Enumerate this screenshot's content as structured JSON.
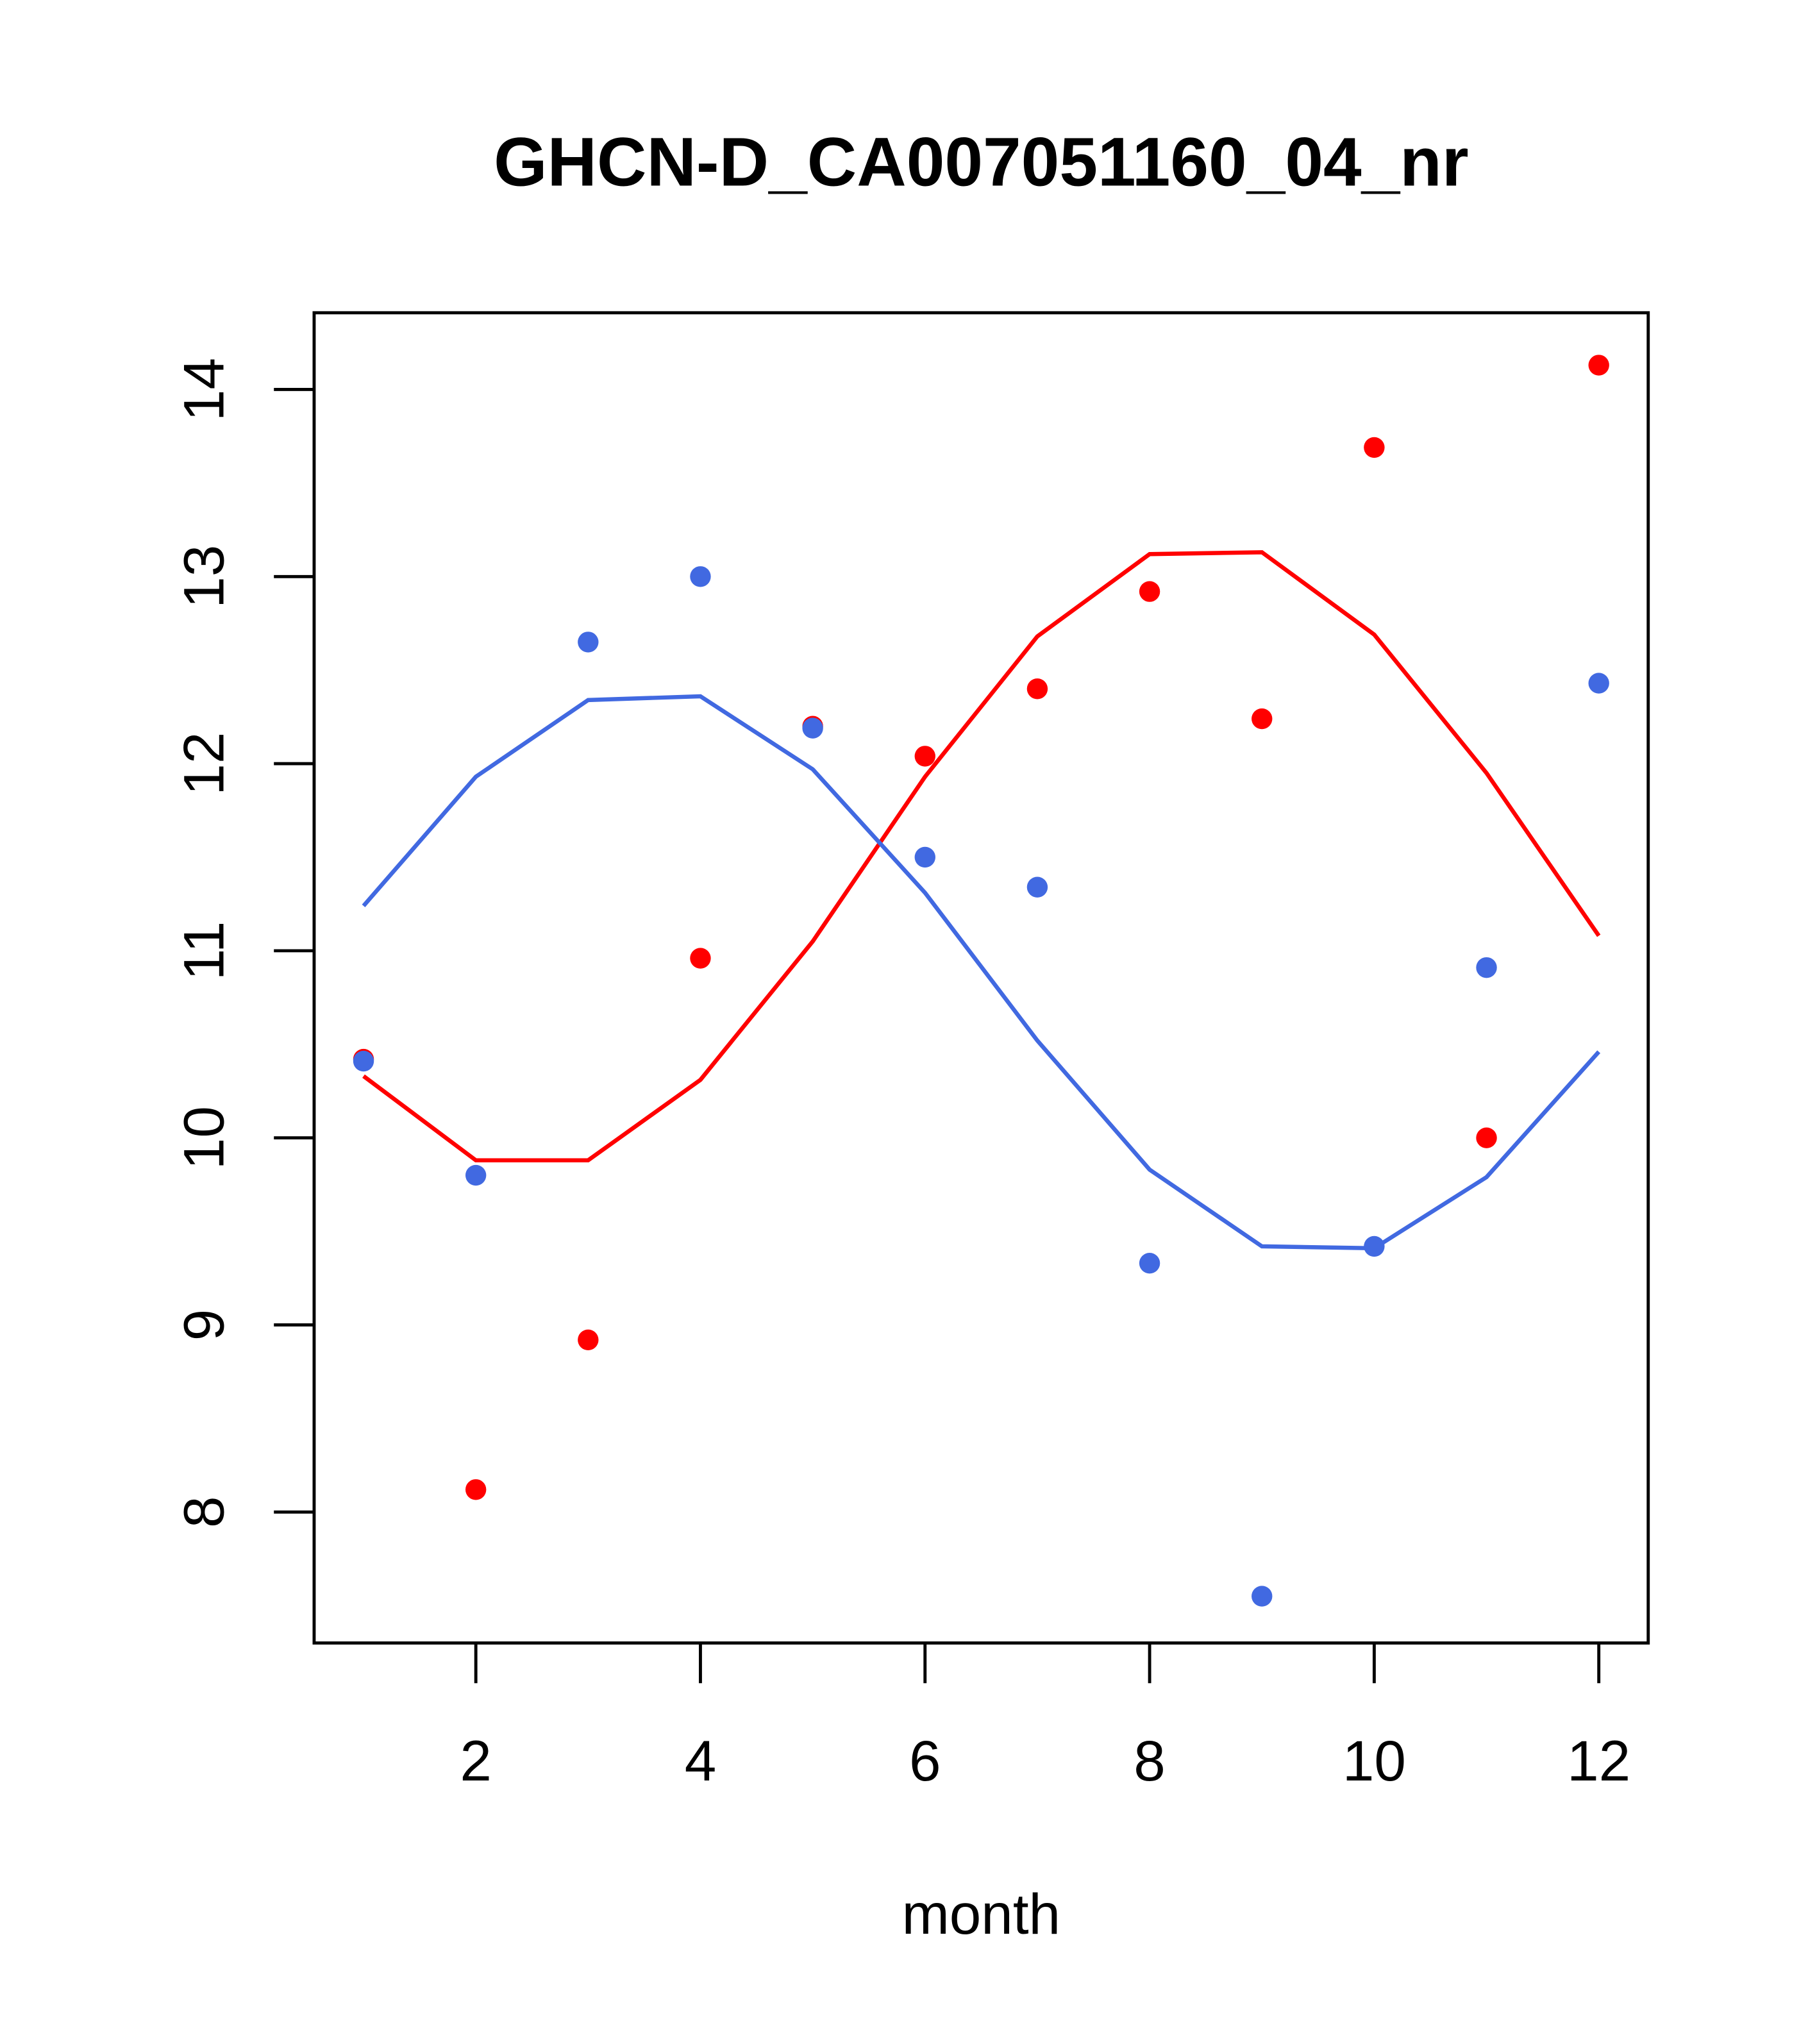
{
  "chart_data": {
    "type": "scatter",
    "title": "GHCN-D_CA007051160_04_nr",
    "xlabel": "month",
    "ylabel": "",
    "xlim": [
      0.56,
      12.44
    ],
    "ylim": [
      7.3,
      14.41
    ],
    "xticks": [
      2,
      4,
      6,
      8,
      10,
      12
    ],
    "xtick_labels": [
      "2",
      "4",
      "6",
      "8",
      "10",
      "12"
    ],
    "yticks": [
      8,
      9,
      10,
      11,
      12,
      13,
      14
    ],
    "ytick_labels": [
      "8",
      "9",
      "10",
      "11",
      "12",
      "13",
      "14"
    ],
    "grid": false,
    "x": [
      1,
      2,
      3,
      4,
      5,
      6,
      7,
      8,
      9,
      10,
      11,
      12
    ],
    "series": [
      {
        "name": "red points",
        "kind": "points",
        "color": "#ff0000",
        "values": [
          10.42,
          8.12,
          8.92,
          10.96,
          12.2,
          12.04,
          12.4,
          12.92,
          12.24,
          13.69,
          10.0,
          14.13
        ]
      },
      {
        "name": "blue points",
        "kind": "points",
        "color": "#4169e1",
        "values": [
          10.41,
          9.8,
          12.65,
          13.0,
          12.19,
          11.5,
          11.34,
          9.33,
          7.55,
          9.42,
          10.91,
          12.43
        ]
      },
      {
        "name": "red fit",
        "kind": "line",
        "color": "#ff0000",
        "values": [
          10.33,
          9.88,
          9.88,
          10.31,
          11.05,
          11.93,
          12.68,
          13.12,
          13.13,
          12.69,
          11.95,
          11.08
        ]
      },
      {
        "name": "blue fit",
        "kind": "line",
        "color": "#4169e1",
        "values": [
          11.24,
          11.93,
          12.34,
          12.36,
          11.97,
          11.31,
          10.52,
          9.83,
          9.42,
          9.41,
          9.79,
          10.46
        ]
      }
    ]
  }
}
